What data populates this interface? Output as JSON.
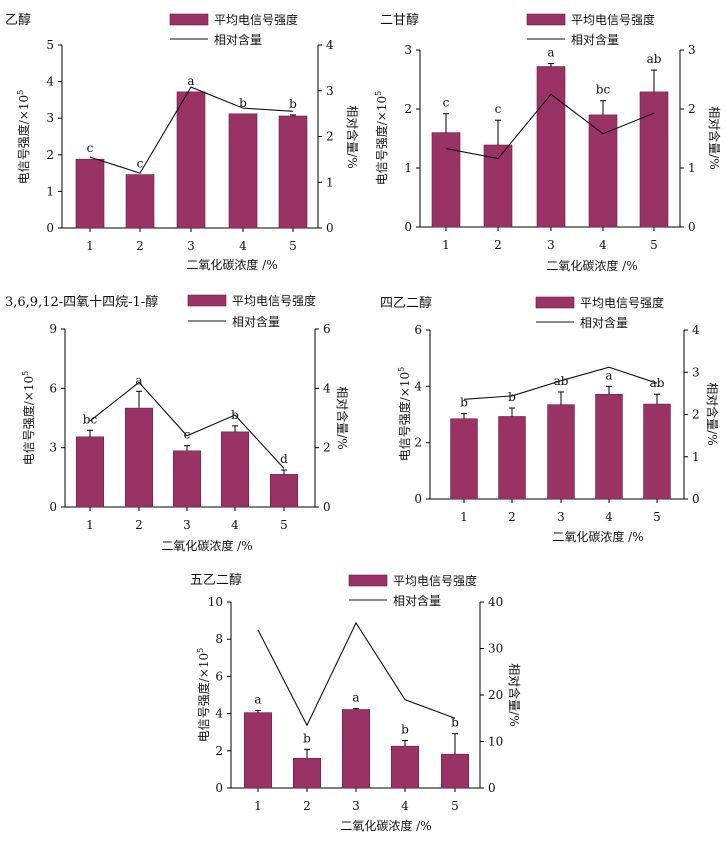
{
  "colors": {
    "bar": "#993366",
    "bar_edge": "#6b1f45",
    "line": "#111111"
  },
  "chart_data": [
    {
      "type": "bar",
      "title": "乙醇",
      "categories": [
        "1",
        "2",
        "3",
        "4",
        "5"
      ],
      "xlabel": "二氧化碳浓度 /%",
      "ylabel": "电信号强度/×10",
      "ylabel_exp": "5",
      "y2label": "相对含量/%",
      "ylim": [
        0,
        5
      ],
      "yticks": [
        "0",
        "1",
        "2",
        "3",
        "4",
        "5"
      ],
      "y2lim": [
        0,
        4
      ],
      "y2ticks": [
        "0",
        "1",
        "2",
        "3",
        "4"
      ],
      "legend": {
        "bar": "平均电信号强度",
        "line": "相对含量"
      },
      "series": [
        {
          "name": "平均电信号强度",
          "type": "bar",
          "axis": "left",
          "values": [
            1.88,
            1.46,
            3.72,
            3.12,
            3.06
          ],
          "errors": [
            0,
            0,
            0,
            0,
            0.03
          ],
          "labels": [
            "c",
            "c",
            "a",
            "b",
            "b"
          ]
        },
        {
          "name": "相对含量",
          "type": "line",
          "axis": "right",
          "values": [
            1.55,
            1.2,
            3.08,
            2.62,
            2.55
          ]
        }
      ]
    },
    {
      "type": "bar",
      "title": "二甘醇",
      "categories": [
        "1",
        "2",
        "3",
        "4",
        "5"
      ],
      "xlabel": "二氧化碳浓度 /%",
      "ylabel": "电信号强度/×10",
      "ylabel_exp": "5",
      "y2label": "相对含量/%",
      "ylim": [
        0,
        3
      ],
      "yticks": [
        "0",
        "1",
        "2",
        "3"
      ],
      "y2lim": [
        0,
        3
      ],
      "y2ticks": [
        "0",
        "1",
        "2",
        "3"
      ],
      "legend": {
        "bar": "平均电信号强度",
        "line": "相对含量"
      },
      "series": [
        {
          "name": "平均电信号强度",
          "type": "bar",
          "axis": "left",
          "values": [
            1.6,
            1.39,
            2.72,
            1.9,
            2.29
          ],
          "errors": [
            0.32,
            0.42,
            0.05,
            0.24,
            0.37
          ],
          "labels": [
            "c",
            "c",
            "a",
            "bc",
            "ab"
          ]
        },
        {
          "name": "相对含量",
          "type": "line",
          "axis": "right",
          "values": [
            1.33,
            1.16,
            2.25,
            1.58,
            1.93
          ]
        }
      ]
    },
    {
      "type": "bar",
      "title": "3,6,9,12-四氧十四烷-1-醇",
      "categories": [
        "1",
        "2",
        "3",
        "4",
        "5"
      ],
      "xlabel": "二氧化碳浓度 /%",
      "ylabel": "电信号强度/×10",
      "ylabel_exp": "5",
      "y2label": "相对含量/%",
      "ylim": [
        0,
        9
      ],
      "yticks": [
        "0",
        "3",
        "6",
        "9"
      ],
      "y2lim": [
        0,
        6
      ],
      "y2ticks": [
        "0",
        "2",
        "4",
        "6"
      ],
      "legend": {
        "bar": "平均电信号强度",
        "line": "相对含量"
      },
      "series": [
        {
          "name": "平均电信号强度",
          "type": "bar",
          "axis": "left",
          "values": [
            3.55,
            5.0,
            2.84,
            3.8,
            1.65
          ],
          "errors": [
            0.33,
            0.85,
            0.26,
            0.3,
            0.22
          ],
          "labels": [
            "bc",
            "a",
            "c",
            "b",
            "d"
          ]
        },
        {
          "name": "相对含量",
          "type": "line",
          "axis": "right",
          "values": [
            2.9,
            4.2,
            2.4,
            3.1,
            1.3
          ]
        }
      ]
    },
    {
      "type": "bar",
      "title": "四乙二醇",
      "categories": [
        "1",
        "2",
        "3",
        "4",
        "5"
      ],
      "xlabel": "二氧化碳浓度 /%",
      "ylabel": "电信号强度/×10",
      "ylabel_exp": "5",
      "y2label": "相对含量/%",
      "ylim": [
        0,
        6
      ],
      "yticks": [
        "0",
        "2",
        "4",
        "6"
      ],
      "y2lim": [
        0,
        4
      ],
      "y2ticks": [
        "0",
        "1",
        "2",
        "3",
        "4"
      ],
      "legend": {
        "bar": "平均电信号强度",
        "line": "相对含量"
      },
      "series": [
        {
          "name": "平均电信号强度",
          "type": "bar",
          "axis": "left",
          "values": [
            2.85,
            2.93,
            3.35,
            3.72,
            3.37
          ],
          "errors": [
            0.18,
            0.3,
            0.45,
            0.28,
            0.35
          ],
          "labels": [
            "b",
            "b",
            "ab",
            "a",
            "ab"
          ]
        },
        {
          "name": "相对含量",
          "type": "line",
          "axis": "right",
          "values": [
            2.36,
            2.44,
            2.8,
            3.12,
            2.74
          ]
        }
      ]
    },
    {
      "type": "bar",
      "title": "五乙二醇",
      "categories": [
        "1",
        "2",
        "3",
        "4",
        "5"
      ],
      "xlabel": "二氧化碳浓度 /%",
      "ylabel": "电信号强度/×10",
      "ylabel_exp": "5",
      "y2label": "相对含量/%",
      "ylim": [
        0,
        10
      ],
      "yticks": [
        "0",
        "2",
        "4",
        "6",
        "8",
        "10"
      ],
      "y2lim": [
        0,
        40
      ],
      "y2ticks": [
        "0",
        "10",
        "20",
        "30",
        "40"
      ],
      "legend": {
        "bar": "平均电信号强度",
        "line": "相对含量"
      },
      "series": [
        {
          "name": "平均电信号强度",
          "type": "bar",
          "axis": "left",
          "values": [
            4.05,
            1.6,
            4.22,
            2.25,
            1.82
          ],
          "errors": [
            0.12,
            0.48,
            0.05,
            0.3,
            1.1
          ],
          "labels": [
            "a",
            "b",
            "a",
            "b",
            "b"
          ]
        },
        {
          "name": "相对含量",
          "type": "line",
          "axis": "right",
          "values": [
            34,
            13.5,
            35.5,
            19,
            15
          ]
        }
      ]
    }
  ]
}
